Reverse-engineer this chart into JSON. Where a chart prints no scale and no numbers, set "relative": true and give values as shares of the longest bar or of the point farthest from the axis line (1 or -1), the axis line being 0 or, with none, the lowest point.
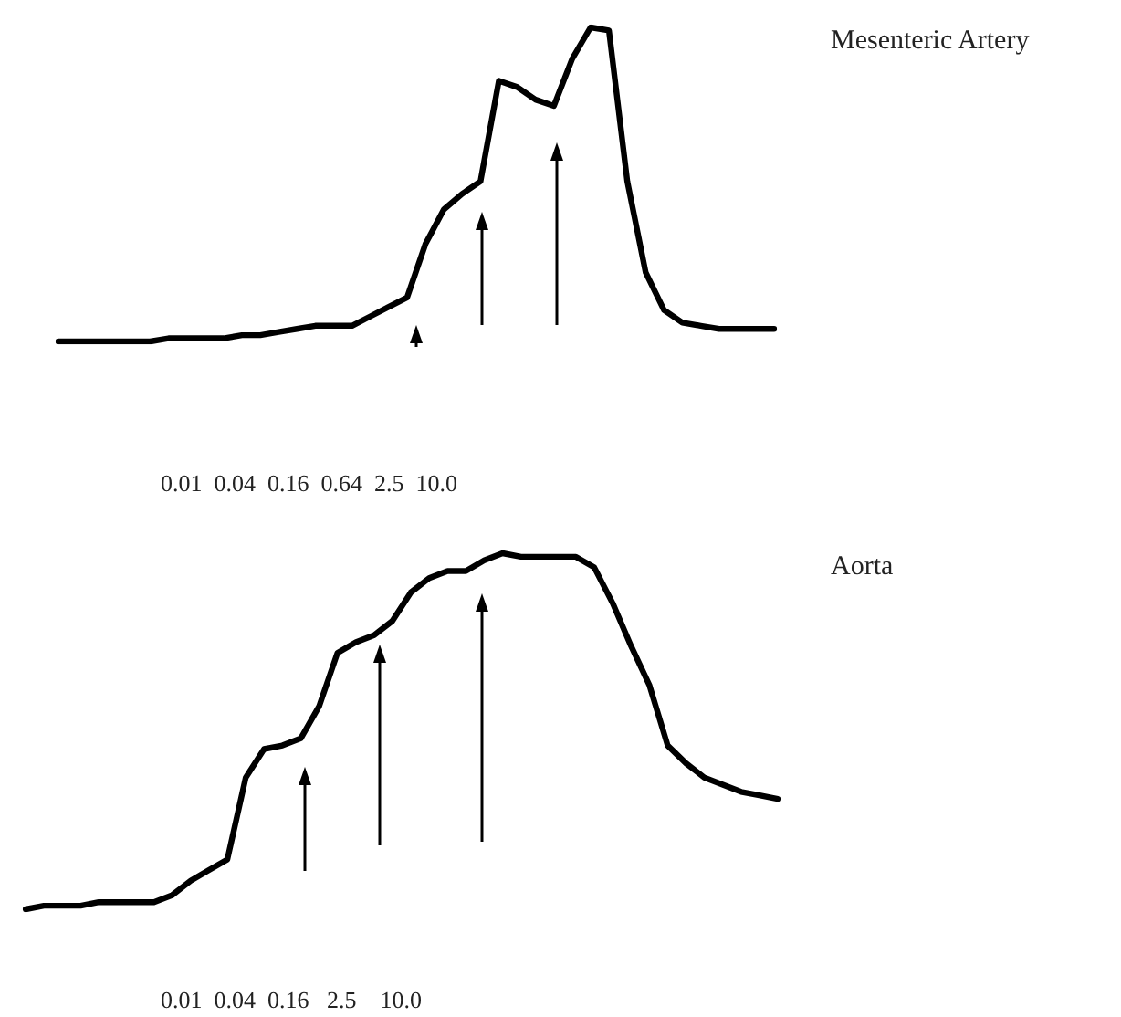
{
  "chart_data": [
    {
      "type": "line",
      "relative": true,
      "annotations": [
        "0.01  0.04  0.16  0.64  2.5  10.0"
      ],
      "categories": [
        null,
        null,
        null,
        null,
        null,
        null,
        null,
        null,
        null,
        null,
        null,
        null,
        null,
        null,
        null,
        null,
        null,
        null,
        null,
        null,
        null,
        null,
        null,
        null,
        null,
        null,
        null,
        null,
        null,
        null,
        null,
        null,
        null,
        null,
        null,
        null,
        null,
        null,
        null,
        null
      ],
      "series": [
        {
          "name": "Mesenteric Artery",
          "color": "#000000",
          "values": [
            0,
            0,
            0,
            0,
            0,
            0,
            0.01,
            0.01,
            0.01,
            0.01,
            0.02,
            0.02,
            0.03,
            0.04,
            0.05,
            0.05,
            0.05,
            0.08,
            0.11,
            0.14,
            0.31,
            0.42,
            0.47,
            0.51,
            0.83,
            0.81,
            0.77,
            0.75,
            0.9,
            1,
            0.99,
            0.51,
            0.22,
            0.1,
            0.06,
            0.05,
            0.04,
            0.04,
            0.04,
            0.04
          ]
        }
      ]
    },
    {
      "type": "line",
      "relative": true,
      "annotations": [
        "0.01  0.04  0.16   2.5    10.0"
      ],
      "categories": [
        null,
        null,
        null,
        null,
        null,
        null,
        null,
        null,
        null,
        null,
        null,
        null,
        null,
        null,
        null,
        null,
        null,
        null,
        null,
        null,
        null,
        null,
        null,
        null,
        null,
        null,
        null,
        null,
        null,
        null,
        null,
        null,
        null,
        null,
        null,
        null,
        null,
        null,
        null,
        null,
        null,
        null
      ],
      "series": [
        {
          "name": "Aorta",
          "color": "#000000",
          "values": [
            0,
            0.01,
            0.01,
            0.01,
            0.02,
            0.02,
            0.02,
            0.02,
            0.04,
            0.08,
            0.11,
            0.14,
            0.37,
            0.45,
            0.46,
            0.48,
            0.57,
            0.72,
            0.75,
            0.77,
            0.81,
            0.89,
            0.93,
            0.95,
            0.95,
            0.98,
            1,
            0.99,
            0.99,
            0.99,
            0.99,
            0.96,
            0.86,
            0.74,
            0.63,
            0.46,
            0.41,
            0.37,
            0.35,
            0.33,
            0.32,
            0.31
          ]
        }
      ]
    }
  ]
}
